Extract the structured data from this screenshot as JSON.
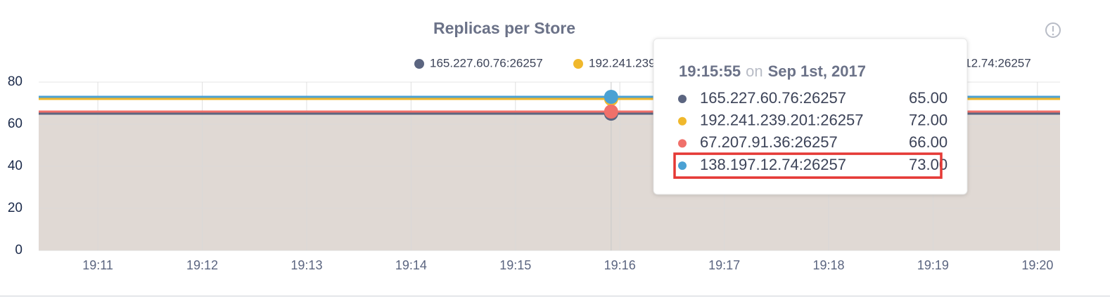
{
  "chart_data": {
    "type": "line",
    "title": "Replicas per Store",
    "x": [
      "19:10:26",
      "19:15:55",
      "19:20:13"
    ],
    "xlim": [
      "19:10:26",
      "19:20:13"
    ],
    "xticks": [
      "19:11",
      "19:12",
      "19:13",
      "19:14",
      "19:15",
      "19:16",
      "19:17",
      "19:18",
      "19:19",
      "19:20"
    ],
    "ylim": [
      0,
      80
    ],
    "yticks": [
      0,
      20,
      40,
      60,
      80
    ],
    "grid": true,
    "legend": "top",
    "area_color": "#e0d9d4",
    "series": [
      {
        "name": "165.227.60.76:26257",
        "color": "#5b6580",
        "values": [
          65,
          65,
          65
        ]
      },
      {
        "name": "192.241.239.201:26257",
        "color": "#f0b82c",
        "values": [
          72,
          72,
          72
        ]
      },
      {
        "name": "67.207.91.36:26257",
        "color": "#f0706a",
        "values": [
          66,
          66,
          66
        ]
      },
      {
        "name": "138.197.12.74:26257",
        "color": "#4ba1d3",
        "values": [
          73,
          73,
          73
        ]
      }
    ],
    "tooltip": {
      "point": 1,
      "word": "on",
      "date": "Sep 1st, 2017",
      "value_labels": [
        "65.00",
        "72.00",
        "66.00",
        "73.00"
      ],
      "highlight": 3
    }
  }
}
